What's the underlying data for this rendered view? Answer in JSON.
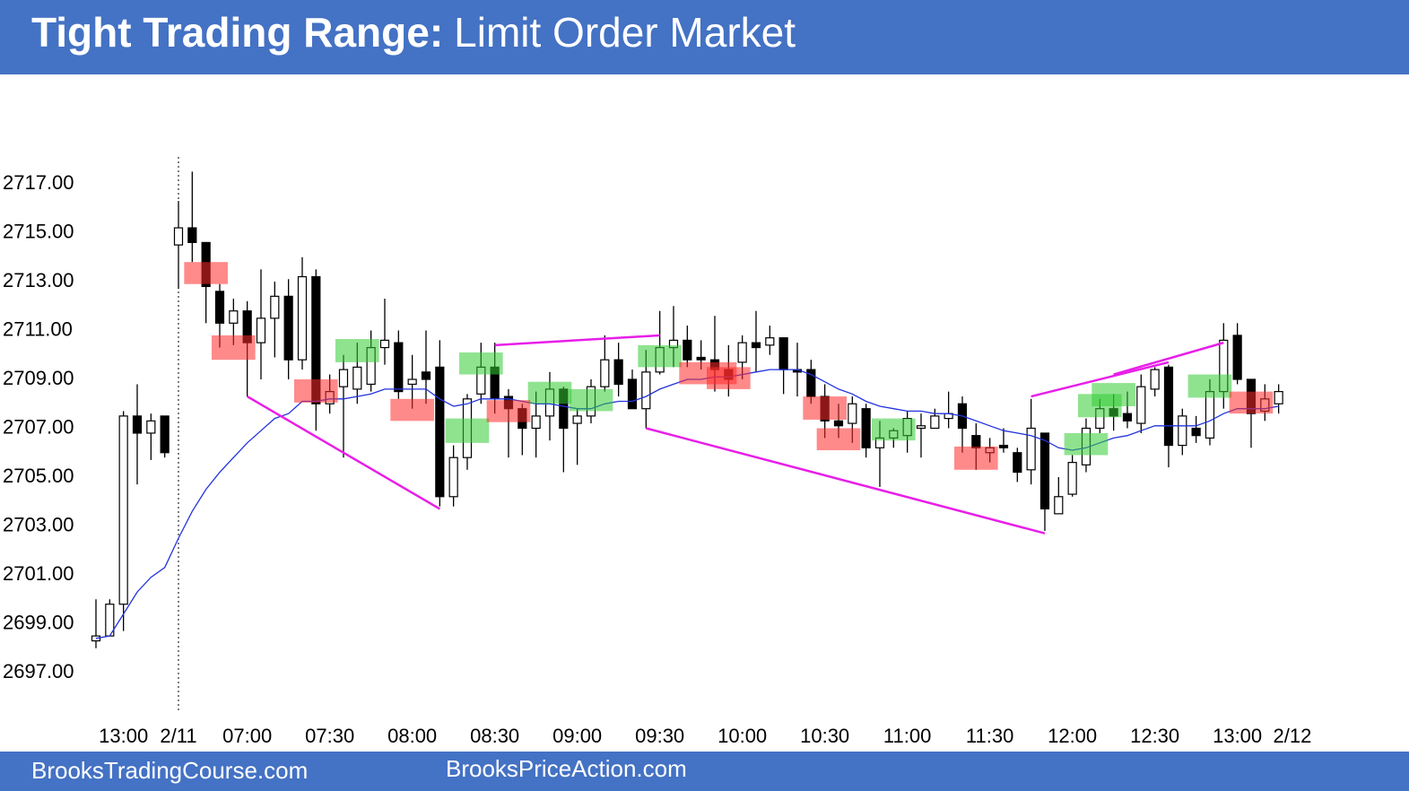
{
  "header": {
    "title_bold": "Tight Trading Range:",
    "title_rest": "Limit Order Market"
  },
  "footer": {
    "left": "BrooksTradingCourse.com",
    "center": "BrooksPriceAction.com"
  },
  "chart_data": {
    "type": "candlestick",
    "categories": [
      null,
      null,
      "13:00",
      null,
      null,
      null,
      "2/11",
      null,
      null,
      null,
      null,
      "07:00",
      null,
      null,
      null,
      null,
      null,
      "07:30",
      null,
      null,
      null,
      null,
      null,
      "08:00",
      null,
      null,
      null,
      null,
      null,
      "08:30",
      null,
      null,
      null,
      null,
      null,
      "09:00",
      null,
      null,
      null,
      null,
      null,
      "09:30",
      null,
      null,
      null,
      null,
      null,
      "10:00",
      null,
      null,
      null,
      null,
      null,
      "10:30",
      null,
      null,
      null,
      null,
      null,
      "11:00",
      null,
      null,
      null,
      null,
      null,
      "11:30",
      null,
      null,
      null,
      null,
      null,
      "12:00",
      null,
      null,
      null,
      null,
      null,
      "12:30",
      null,
      null,
      null,
      null,
      null,
      "13:00",
      null,
      null,
      null,
      "2/12"
    ],
    "open": [
      2698.3,
      2698.5,
      2699.8,
      2707.5,
      2706.8,
      2707.5,
      2714.5,
      2715.2,
      2714.6,
      2712.6,
      2711.3,
      2711.8,
      2710.5,
      2711.5,
      2712.4,
      2709.8,
      2713.2,
      2708.0,
      2708.7,
      2708.6,
      2708.8,
      2710.3,
      2710.5,
      2708.8,
      2709.3,
      2709.5,
      2704.2,
      2705.8,
      2708.4,
      2709.5,
      2708.3,
      2707.8,
      2707.0,
      2707.5,
      2708.6,
      2707.2,
      2707.5,
      2708.7,
      2709.8,
      2709.0,
      2707.8,
      2709.3,
      2710.3,
      2710.6,
      2709.9,
      2709.8,
      2709.4,
      2709.7,
      2710.5,
      2710.4,
      2710.7,
      2709.4,
      2709.4,
      2708.3,
      2707.3,
      2707.2,
      2707.8,
      2706.2,
      2706.6,
      2706.7,
      2707.0,
      2707.0,
      2707.4,
      2708.0,
      2706.7,
      2706.0,
      2706.3,
      2706.0,
      2705.3,
      2706.8,
      2703.5,
      2704.3,
      2705.5,
      2707.0,
      2707.8,
      2707.6,
      2707.2,
      2708.6,
      2709.5,
      2706.3,
      2707.0,
      2706.6,
      2708.5,
      2710.8,
      2709.0,
      2707.7,
      2708.0,
      null
    ],
    "high": [
      2700.0,
      2700.0,
      2707.7,
      2708.8,
      2707.6,
      2707.5,
      2716.3,
      2717.5,
      2714.6,
      2712.9,
      2712.3,
      2712.2,
      2713.5,
      2713.0,
      2713.1,
      2714.0,
      2713.5,
      2709.2,
      2710.0,
      2710.5,
      2711.0,
      2712.3,
      2711.0,
      2710.0,
      2711.0,
      2710.6,
      2706.3,
      2708.4,
      2710.5,
      2710.5,
      2708.6,
      2708.0,
      2708.5,
      2709.3,
      2708.7,
      2707.8,
      2709.0,
      2710.8,
      2710.5,
      2709.4,
      2710.2,
      2711.8,
      2712.0,
      2711.2,
      2710.6,
      2711.6,
      2710.4,
      2710.8,
      2711.8,
      2711.2,
      2710.7,
      2710.5,
      2709.8,
      2708.8,
      2708.0,
      2708.3,
      2708.0,
      2707.3,
      2707.0,
      2707.7,
      2707.6,
      2707.8,
      2708.5,
      2708.3,
      2707.2,
      2706.6,
      2707.0,
      2706.2,
      2708.2,
      2706.8,
      2705.0,
      2705.9,
      2707.4,
      2708.2,
      2708.4,
      2708.5,
      2709.2,
      2709.5,
      2709.6,
      2707.8,
      2707.5,
      2709.0,
      2711.3,
      2711.3,
      2709.0,
      2708.8,
      2708.8,
      null
    ],
    "low": [
      2698.0,
      2698.5,
      2698.7,
      2704.7,
      2705.7,
      2705.8,
      2712.7,
      2713.8,
      2711.3,
      2710.3,
      2710.4,
      2708.3,
      2709.0,
      2709.9,
      2709.0,
      2709.4,
      2706.9,
      2707.6,
      2705.8,
      2708.0,
      2708.5,
      2709.6,
      2708.2,
      2707.8,
      2708.0,
      2703.8,
      2703.8,
      2705.3,
      2708.0,
      2707.6,
      2705.8,
      2705.9,
      2705.8,
      2706.5,
      2705.2,
      2705.5,
      2707.2,
      2708.5,
      2708.3,
      2707.8,
      2707.0,
      2709.2,
      2709.5,
      2709.5,
      2709.4,
      2708.5,
      2708.3,
      2709.0,
      2709.3,
      2710.0,
      2708.4,
      2708.3,
      2708.0,
      2706.6,
      2706.6,
      2706.4,
      2705.8,
      2704.6,
      2706.2,
      2706.0,
      2705.8,
      2707.0,
      2707.0,
      2706.0,
      2705.3,
      2705.6,
      2706.0,
      2704.8,
      2704.7,
      2702.8,
      2703.5,
      2704.2,
      2705.2,
      2706.8,
      2706.9,
      2707.0,
      2706.8,
      2708.3,
      2705.4,
      2705.9,
      2706.4,
      2706.3,
      2707.8,
      2708.8,
      2706.2,
      2707.3,
      2707.6,
      null
    ],
    "close": [
      2698.5,
      2699.8,
      2707.5,
      2706.8,
      2707.3,
      2706.0,
      2715.2,
      2714.6,
      2712.8,
      2711.3,
      2711.8,
      2710.5,
      2711.5,
      2712.4,
      2709.8,
      2713.2,
      2708.0,
      2708.5,
      2709.4,
      2709.5,
      2710.3,
      2710.6,
      2708.5,
      2709.0,
      2709.0,
      2704.2,
      2705.8,
      2708.2,
      2709.5,
      2708.2,
      2707.8,
      2707.0,
      2707.5,
      2708.6,
      2707.0,
      2707.5,
      2708.7,
      2709.8,
      2708.8,
      2707.8,
      2709.3,
      2710.3,
      2710.6,
      2709.8,
      2709.8,
      2709.4,
      2709.0,
      2710.5,
      2710.3,
      2710.7,
      2709.4,
      2709.3,
      2708.3,
      2707.3,
      2707.1,
      2708.0,
      2706.2,
      2706.6,
      2706.9,
      2707.4,
      2707.1,
      2707.5,
      2707.6,
      2707.0,
      2706.2,
      2706.2,
      2706.2,
      2705.2,
      2707.0,
      2703.7,
      2704.2,
      2705.6,
      2707.0,
      2707.8,
      2707.5,
      2707.3,
      2708.7,
      2709.4,
      2706.3,
      2707.5,
      2706.7,
      2708.5,
      2710.6,
      2709.0,
      2707.6,
      2708.2,
      2708.5,
      null
    ],
    "moving_average": {
      "color": "#2233dd",
      "values": [
        2698.4,
        2698.5,
        2699.4,
        2700.3,
        2700.9,
        2701.3,
        2702.5,
        2703.6,
        2704.5,
        2705.2,
        2705.8,
        2706.4,
        2706.9,
        2707.4,
        2707.6,
        2708.1,
        2708.1,
        2708.2,
        2708.2,
        2708.3,
        2708.4,
        2708.6,
        2708.6,
        2708.6,
        2708.6,
        2708.2,
        2707.9,
        2708.0,
        2708.2,
        2708.2,
        2708.2,
        2708.1,
        2708.0,
        2708.0,
        2707.9,
        2707.8,
        2707.8,
        2708.0,
        2708.1,
        2708.1,
        2708.3,
        2708.6,
        2708.8,
        2709.0,
        2709.0,
        2709.1,
        2709.1,
        2709.2,
        2709.3,
        2709.4,
        2709.4,
        2709.4,
        2709.2,
        2708.9,
        2708.6,
        2708.4,
        2708.1,
        2707.9,
        2707.8,
        2707.7,
        2707.7,
        2707.6,
        2707.6,
        2707.5,
        2707.3,
        2707.1,
        2706.9,
        2706.8,
        2706.7,
        2706.5,
        2706.2,
        2706.1,
        2706.2,
        2706.4,
        2706.6,
        2706.7,
        2706.9,
        2707.1,
        2707.1,
        2707.1,
        2707.1,
        2707.3,
        2707.6,
        2707.8,
        2707.8,
        2707.8,
        2707.9,
        null
      ]
    },
    "up_color": "#ffffff",
    "down_color": "#000000",
    "zones": [
      {
        "from": 18,
        "to": 20,
        "low": 2709.7,
        "high": 2710.65,
        "color": "#33cc33"
      },
      {
        "from": 26,
        "to": 28,
        "low": 2706.4,
        "high": 2707.4,
        "color": "#33cc33"
      },
      {
        "from": 27,
        "to": 29,
        "low": 2709.2,
        "high": 2710.1,
        "color": "#33cc33"
      },
      {
        "from": 32,
        "to": 34,
        "low": 2708.0,
        "high": 2708.9,
        "color": "#33cc33"
      },
      {
        "from": 35,
        "to": 37,
        "low": 2707.7,
        "high": 2708.6,
        "color": "#33cc33"
      },
      {
        "from": 40,
        "to": 42,
        "low": 2709.5,
        "high": 2710.4,
        "color": "#33cc33"
      },
      {
        "from": 57,
        "to": 59,
        "low": 2706.5,
        "high": 2707.4,
        "color": "#33cc33"
      },
      {
        "from": 71,
        "to": 73,
        "low": 2705.9,
        "high": 2706.8,
        "color": "#33cc33"
      },
      {
        "from": 72,
        "to": 74,
        "low": 2707.45,
        "high": 2708.4,
        "color": "#33cc33"
      },
      {
        "from": 73,
        "to": 75,
        "low": 2707.9,
        "high": 2708.85,
        "color": "#33cc33"
      },
      {
        "from": 80,
        "to": 82,
        "low": 2708.25,
        "high": 2709.2,
        "color": "#33cc33"
      },
      {
        "from": 7,
        "to": 9,
        "low": 2712.9,
        "high": 2713.8,
        "color": "#ff2a2a"
      },
      {
        "from": 9,
        "to": 11,
        "low": 2709.8,
        "high": 2710.8,
        "color": "#ff2a2a"
      },
      {
        "from": 15,
        "to": 17,
        "low": 2708.05,
        "high": 2709.0,
        "color": "#ff2a2a"
      },
      {
        "from": 22,
        "to": 24,
        "low": 2707.3,
        "high": 2708.2,
        "color": "#ff2a2a"
      },
      {
        "from": 29,
        "to": 31,
        "low": 2707.25,
        "high": 2708.15,
        "color": "#ff2a2a"
      },
      {
        "from": 43,
        "to": 46,
        "low": 2708.8,
        "high": 2709.7,
        "color": "#ff2a2a"
      },
      {
        "from": 45,
        "to": 47,
        "low": 2708.6,
        "high": 2709.5,
        "color": "#ff2a2a"
      },
      {
        "from": 52,
        "to": 54,
        "low": 2707.35,
        "high": 2708.3,
        "color": "#ff2a2a"
      },
      {
        "from": 53,
        "to": 55,
        "low": 2706.1,
        "high": 2707.0,
        "color": "#ff2a2a"
      },
      {
        "from": 63,
        "to": 65,
        "low": 2705.3,
        "high": 2706.25,
        "color": "#ff2a2a"
      },
      {
        "from": 83,
        "to": 85,
        "low": 2707.6,
        "high": 2708.5,
        "color": "#ff2a2a"
      }
    ],
    "trendlines": [
      {
        "x0": 11,
        "y0": 2708.3,
        "x1": 25,
        "y1": 2703.7,
        "color": "#e81ee8"
      },
      {
        "x0": 29,
        "y0": 2710.4,
        "x1": 41,
        "y1": 2710.8,
        "color": "#e81ee8"
      },
      {
        "x0": 40,
        "y0": 2707.0,
        "x1": 69,
        "y1": 2702.7,
        "color": "#e81ee8"
      },
      {
        "x0": 68,
        "y0": 2708.3,
        "x1": 78,
        "y1": 2709.7,
        "color": "#e81ee8"
      },
      {
        "x0": 74,
        "y0": 2709.2,
        "x1": 82,
        "y1": 2710.5,
        "color": "#e81ee8"
      }
    ],
    "ylim": [
      2695,
      2719
    ],
    "yticks": [
      {
        "value": 2697,
        "label": "2697.00"
      },
      {
        "value": 2699,
        "label": "2699.00"
      },
      {
        "value": 2701,
        "label": "2701.00"
      },
      {
        "value": 2703,
        "label": "2703.00"
      },
      {
        "value": 2705,
        "label": "2705.00"
      },
      {
        "value": 2707,
        "label": "2707.00"
      },
      {
        "value": 2709,
        "label": "2709.00"
      },
      {
        "value": 2711,
        "label": "2711.00"
      },
      {
        "value": 2713,
        "label": "2713.00"
      },
      {
        "value": 2715,
        "label": "2715.00"
      },
      {
        "value": 2717,
        "label": "2717.00"
      }
    ],
    "grid": false
  }
}
